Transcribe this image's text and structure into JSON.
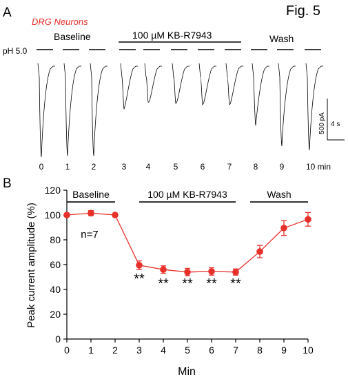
{
  "figure": {
    "fig_label": "Fig. 5",
    "panel_a_letter": "A",
    "panel_b_letter": "B",
    "cell_type_label": "DRG Neurons",
    "ph_label": "pH 5.0",
    "condition_labels": [
      "Baseline",
      "100 µM KB-R7943",
      "Wash"
    ],
    "scale_bar": {
      "current": "500 pA",
      "time": "4 s"
    },
    "trace_times": [
      "0",
      "1",
      "2",
      "3",
      "4",
      "5",
      "6",
      "7",
      "8",
      "9"
    ],
    "trace_last_time": "10 min",
    "colors": {
      "accent": "#e8302a",
      "trace": "#000000"
    }
  },
  "chart_data": {
    "type": "line",
    "title": "",
    "xlabel": "Min",
    "ylabel": "Peak current amplitude (%)",
    "xlim": [
      0,
      10
    ],
    "ylim": [
      0,
      120
    ],
    "x_ticks": [
      "0",
      "1",
      "2",
      "3",
      "4",
      "5",
      "6",
      "7",
      "8",
      "9",
      "10"
    ],
    "y_ticks": [
      "0",
      "20",
      "40",
      "60",
      "80",
      "100",
      "120"
    ],
    "grid": false,
    "legend": "none",
    "series": [
      {
        "color": "#e8302a",
        "x": [
          0,
          1,
          2,
          3,
          4,
          5,
          6,
          7,
          8,
          9,
          10
        ],
        "values": [
          100,
          101.5,
          100,
          59.5,
          56,
          54,
          54.5,
          54,
          70.5,
          89.5,
          96.5
        ],
        "errors": [
          1,
          2,
          1,
          3.5,
          3,
          3,
          3,
          2.5,
          5,
          6,
          5.5
        ]
      }
    ],
    "annotations": {
      "n_label": "n=7",
      "significance_text": "**",
      "significance_at_x": [
        3,
        4,
        5,
        6,
        7
      ],
      "periods": [
        {
          "label": "Baseline",
          "x_start": 0,
          "x_end": 2
        },
        {
          "label": "100 µM KB-R7943",
          "x_start": 3,
          "x_end": 7
        },
        {
          "label": "Wash",
          "x_start": 7.6,
          "x_end": 10
        }
      ]
    }
  }
}
